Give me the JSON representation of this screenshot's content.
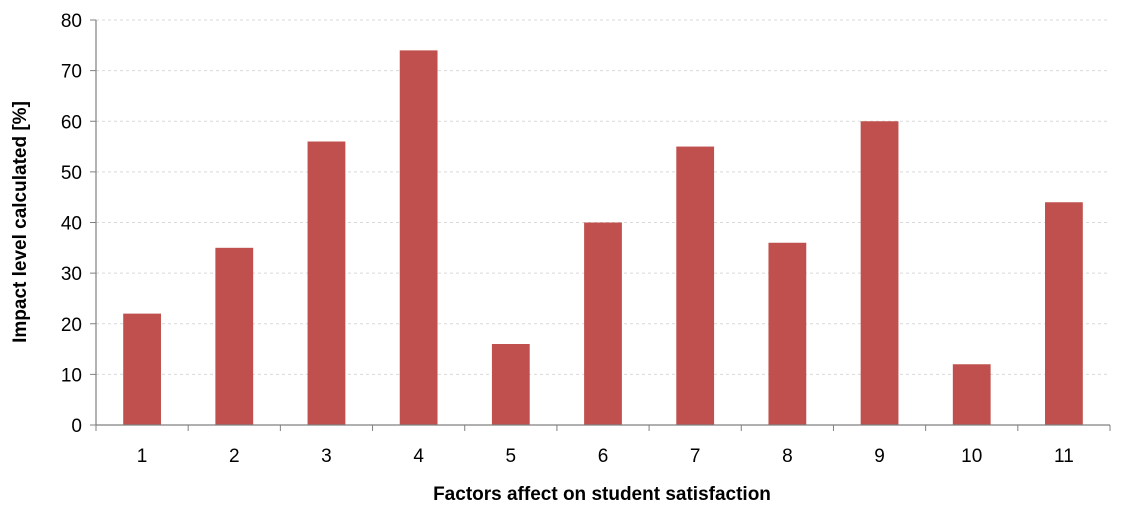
{
  "colors": {
    "bar": "#c0504d",
    "grid": "#d9d9d9",
    "axis": "#808080"
  },
  "chart_data": {
    "type": "bar",
    "categories": [
      "1",
      "2",
      "3",
      "4",
      "5",
      "6",
      "7",
      "8",
      "9",
      "10",
      "11"
    ],
    "values": [
      22,
      35,
      56,
      74,
      16,
      40,
      55,
      36,
      60,
      12,
      44
    ],
    "title": "",
    "xlabel": "Factors  affect on student satisfaction",
    "ylabel": "Impact level calculated [%]",
    "ylim": [
      0,
      80
    ],
    "yticks": [
      0,
      10,
      20,
      30,
      40,
      50,
      60,
      70,
      80
    ],
    "grid": "horizontal-dashed",
    "legend": "none"
  }
}
